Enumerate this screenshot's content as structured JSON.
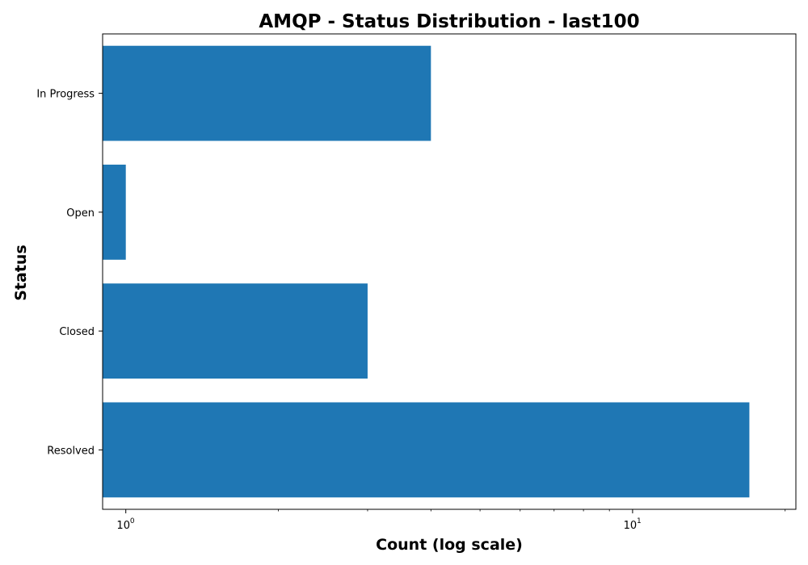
{
  "chart_data": {
    "type": "bar",
    "orientation": "horizontal",
    "title": "AMQP - Status Distribution - last100",
    "xlabel": "Count (log scale)",
    "ylabel": "Status",
    "x_scale": "log",
    "xlim": [
      0.9,
      21
    ],
    "x_ticks": [
      {
        "value": 1,
        "base": "10",
        "exponent": "0"
      },
      {
        "value": 10,
        "base": "10",
        "exponent": "1"
      }
    ],
    "categories": [
      "In Progress",
      "Open",
      "Closed",
      "Resolved"
    ],
    "values": [
      4,
      1,
      3,
      17
    ],
    "bar_color": "#1f77b4",
    "grid": false,
    "legend": "none"
  }
}
